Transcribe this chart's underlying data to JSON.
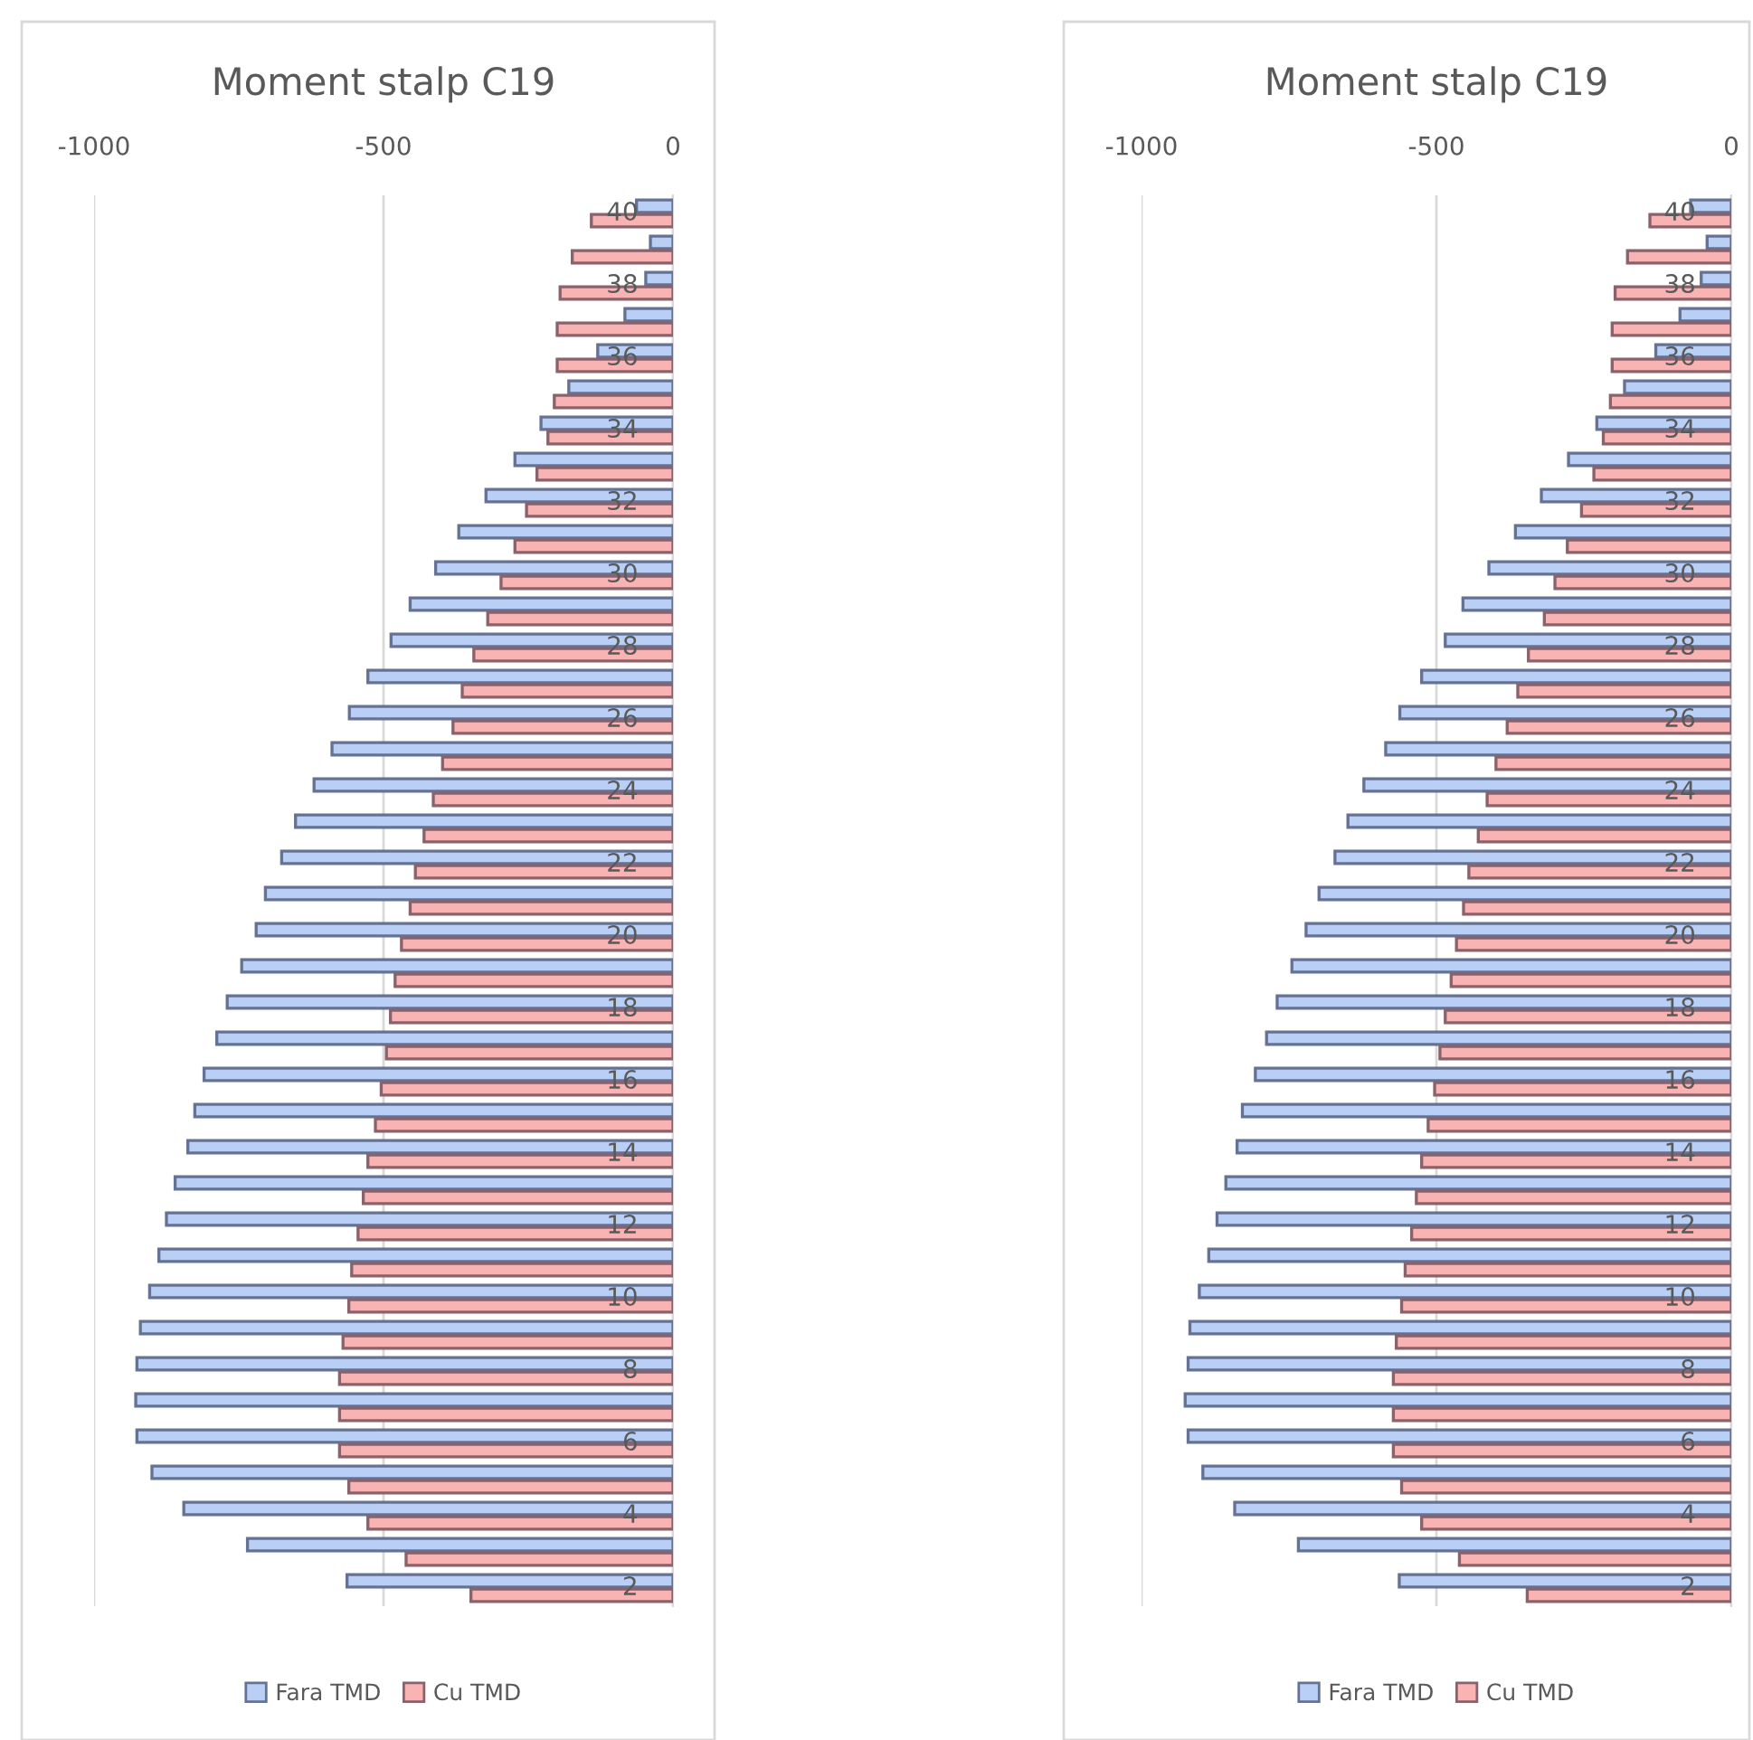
{
  "chart_data": [
    {
      "type": "bar",
      "orientation": "horizontal",
      "title": "Moment stalp C19",
      "categories": [
        "40",
        null,
        "38",
        null,
        "36",
        null,
        "34",
        null,
        "32",
        null,
        "30",
        null,
        "28",
        null,
        "26",
        null,
        "24",
        null,
        "22",
        null,
        "20",
        null,
        "18",
        null,
        "16",
        null,
        "14",
        null,
        "12",
        null,
        "10",
        null,
        "8",
        null,
        "6",
        null,
        "4",
        null,
        "2"
      ],
      "series": [
        {
          "name": "Fara TMD",
          "color": "#b9cff5",
          "values": [
            -63,
            -39,
            -47,
            -83,
            -130,
            -180,
            -228,
            -273,
            -323,
            -370,
            -410,
            -454,
            -487,
            -527,
            -559,
            -589,
            -620,
            -652,
            -676,
            -704,
            -720,
            -745,
            -770,
            -788,
            -810,
            -826,
            -838,
            -860,
            -875,
            -888,
            -904,
            -920,
            -926,
            -928,
            -926,
            -900,
            -845,
            -735,
            -563
          ]
        },
        {
          "name": "Cu TMD",
          "color": "#f9b3b3",
          "values": [
            -141,
            -174,
            -195,
            -200,
            -200,
            -205,
            -216,
            -235,
            -253,
            -273,
            -297,
            -320,
            -344,
            -364,
            -380,
            -398,
            -414,
            -430,
            -445,
            -454,
            -469,
            -480,
            -488,
            -495,
            -504,
            -514,
            -527,
            -535,
            -544,
            -555,
            -560,
            -570,
            -576,
            -576,
            -576,
            -560,
            -527,
            -461,
            -349
          ]
        }
      ],
      "xlim": [
        -1000,
        0
      ],
      "xticks": [
        -1000,
        -500,
        0
      ],
      "grid": "x",
      "legend": "bottom"
    },
    {
      "type": "bar",
      "orientation": "horizontal",
      "title": "Moment stalp C19",
      "categories": [
        "40",
        null,
        "38",
        null,
        "36",
        null,
        "34",
        null,
        "32",
        null,
        "30",
        null,
        "28",
        null,
        "26",
        null,
        "24",
        null,
        "22",
        null,
        "20",
        null,
        "18",
        null,
        "16",
        null,
        "14",
        null,
        "12",
        null,
        "10",
        null,
        "8",
        null,
        "6",
        null,
        "4",
        null,
        "2"
      ],
      "series": [
        {
          "name": "Fara TMD",
          "color": "#b9cff5",
          "values": [
            -69,
            -41,
            -51,
            -87,
            -128,
            -181,
            -228,
            -276,
            -322,
            -366,
            -411,
            -455,
            -485,
            -525,
            -562,
            -586,
            -623,
            -650,
            -672,
            -699,
            -721,
            -745,
            -770,
            -788,
            -807,
            -829,
            -838,
            -857,
            -872,
            -886,
            -902,
            -918,
            -921,
            -926,
            -921,
            -896,
            -842,
            -734,
            -563
          ]
        },
        {
          "name": "Cu TMD",
          "color": "#f9b3b3",
          "values": [
            -138,
            -176,
            -197,
            -202,
            -202,
            -205,
            -217,
            -233,
            -254,
            -278,
            -299,
            -317,
            -344,
            -362,
            -380,
            -399,
            -414,
            -429,
            -445,
            -454,
            -466,
            -475,
            -485,
            -494,
            -503,
            -514,
            -525,
            -534,
            -542,
            -553,
            -559,
            -568,
            -573,
            -573,
            -573,
            -559,
            -525,
            -461,
            -346
          ]
        }
      ],
      "xlim": [
        -1000,
        0
      ],
      "xticks": [
        -1000,
        -500,
        0
      ],
      "grid": "x",
      "legend": "bottom"
    }
  ]
}
